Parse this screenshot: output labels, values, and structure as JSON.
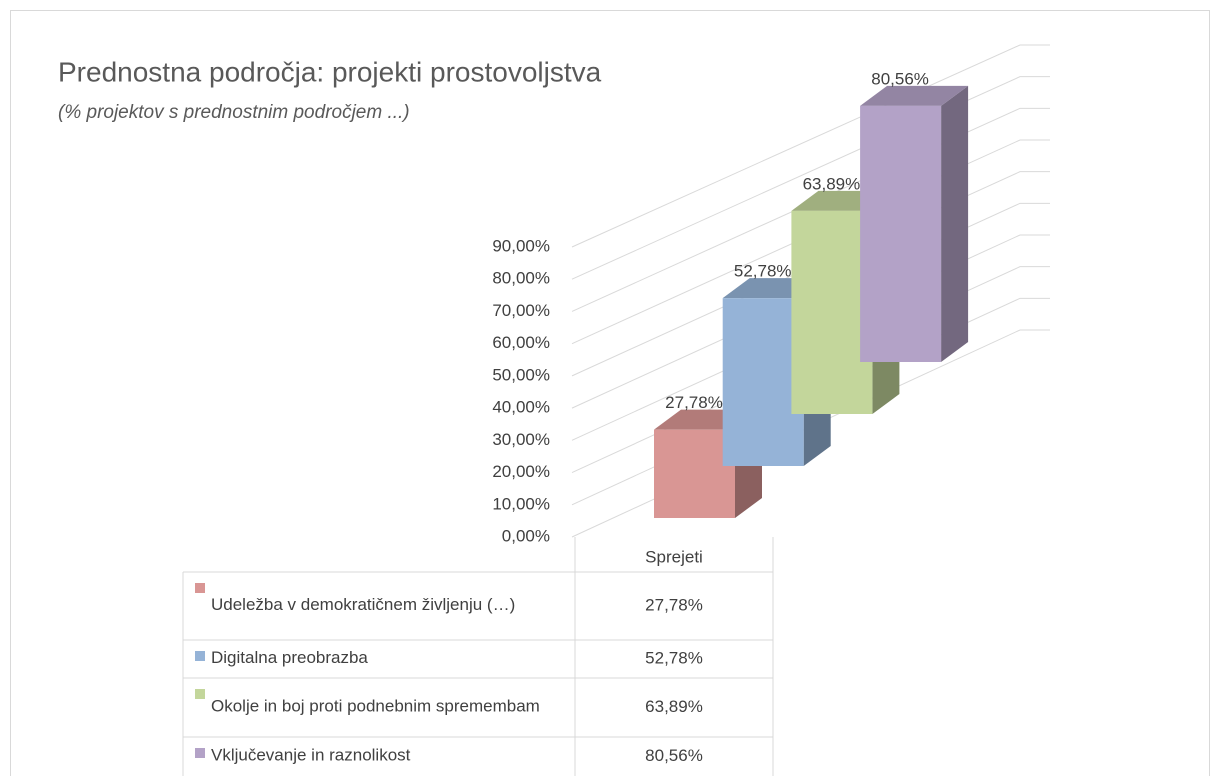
{
  "chart_data": {
    "type": "bar3d",
    "title": "Prednostna področja: projekti prostovoljstva",
    "subtitle": "(% projektov s prednostnim področjem ...)",
    "categories": [
      "Sprejeti"
    ],
    "series": [
      {
        "name": "Udeležba v demokratičnem življenju (…)",
        "color": "#d99694",
        "values": [
          27.78
        ],
        "value_labels": [
          "27,78%"
        ]
      },
      {
        "name": "Digitalna preobrazba",
        "color": "#95b3d7",
        "values": [
          52.78
        ],
        "value_labels": [
          "52,78%"
        ]
      },
      {
        "name": "Okolje in boj proti podnebnim spremembam",
        "color": "#c3d69b",
        "values": [
          63.89
        ],
        "value_labels": [
          "63,89%"
        ]
      },
      {
        "name": "Vključevanje in raznolikost",
        "color": "#b3a2c7",
        "values": [
          80.56
        ],
        "value_labels": [
          "80,56%"
        ]
      }
    ],
    "ylim": [
      0,
      90
    ],
    "yticks": [
      {
        "value": 0,
        "label": "0,00%"
      },
      {
        "value": 10,
        "label": "10,00%"
      },
      {
        "value": 20,
        "label": "20,00%"
      },
      {
        "value": 30,
        "label": "30,00%"
      },
      {
        "value": 40,
        "label": "40,00%"
      },
      {
        "value": 50,
        "label": "50,00%"
      },
      {
        "value": 60,
        "label": "60,00%"
      },
      {
        "value": 70,
        "label": "70,00%"
      },
      {
        "value": 80,
        "label": "80,00%"
      },
      {
        "value": 90,
        "label": "90,00%"
      }
    ],
    "grid": true,
    "data_table": true
  }
}
